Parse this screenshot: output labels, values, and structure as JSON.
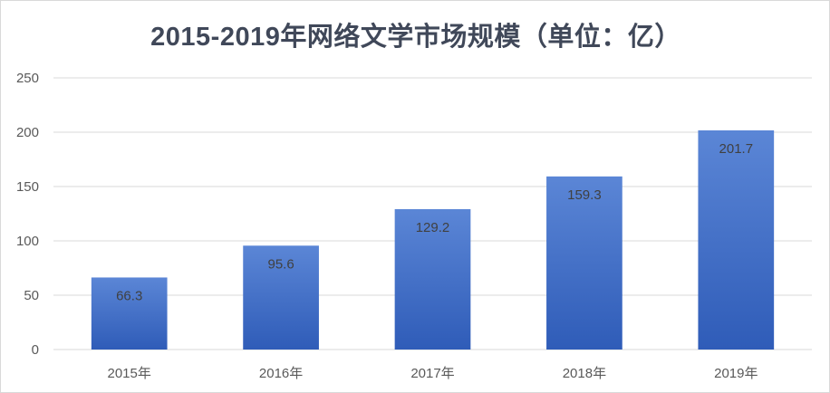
{
  "chart_data": {
    "type": "bar",
    "title": "2015-2019年网络文学市场规模（单位：亿）",
    "xlabel": "",
    "ylabel": "",
    "categories": [
      "2015年",
      "2016年",
      "2017年",
      "2018年",
      "2019年"
    ],
    "values": [
      66.3,
      95.6,
      129.2,
      159.3,
      201.7
    ],
    "data_labels": [
      "66.3",
      "95.6",
      "129.2",
      "159.3",
      "201.7"
    ],
    "ylim": [
      0,
      250
    ],
    "yticks": [
      0,
      50,
      100,
      150,
      200,
      250
    ],
    "grid": true,
    "legend": "none",
    "colors": {
      "bar_top": "#5b86d6",
      "bar_bottom": "#2f5cb8",
      "grid": "#d9d9d9",
      "title": "#404859"
    }
  }
}
